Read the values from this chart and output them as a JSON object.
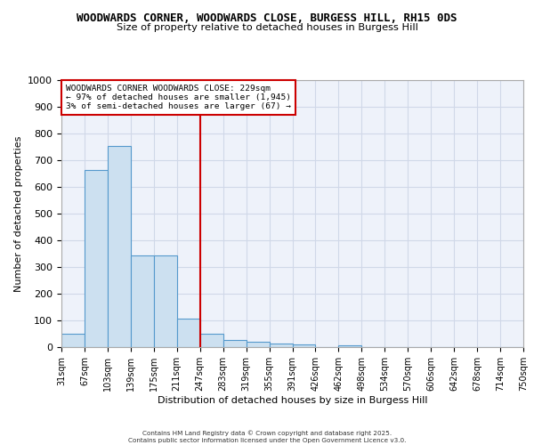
{
  "title_line1": "WOODWARDS CORNER, WOODWARDS CLOSE, BURGESS HILL, RH15 0DS",
  "title_line2": "Size of property relative to detached houses in Burgess Hill",
  "xlabel": "Distribution of detached houses by size in Burgess Hill",
  "ylabel": "Number of detached properties",
  "tick_labels": [
    "31sqm",
    "67sqm",
    "103sqm",
    "139sqm",
    "175sqm",
    "211sqm",
    "247sqm",
    "283sqm",
    "319sqm",
    "355sqm",
    "391sqm",
    "426sqm",
    "462sqm",
    "498sqm",
    "534sqm",
    "570sqm",
    "606sqm",
    "642sqm",
    "678sqm",
    "714sqm",
    "750sqm"
  ],
  "bar_values": [
    50,
    665,
    755,
    345,
    345,
    108,
    50,
    27,
    20,
    15,
    10,
    0,
    8,
    0,
    0,
    0,
    0,
    0,
    0,
    0
  ],
  "bar_color": "#cce0f0",
  "bar_edge_color": "#5599cc",
  "vline_x": 5.5,
  "vline_color": "#cc0000",
  "ylim": [
    0,
    1000
  ],
  "yticks": [
    0,
    100,
    200,
    300,
    400,
    500,
    600,
    700,
    800,
    900,
    1000
  ],
  "annotation_title": "WOODWARDS CORNER WOODWARDS CLOSE: 229sqm",
  "annotation_line1": "← 97% of detached houses are smaller (1,945)",
  "annotation_line2": "3% of semi-detached houses are larger (67) →",
  "annotation_color": "#cc0000",
  "grid_color": "#d0d8e8",
  "background_color": "#eef2fa",
  "footer_line1": "Contains HM Land Registry data © Crown copyright and database right 2025.",
  "footer_line2": "Contains public sector information licensed under the Open Government Licence v3.0."
}
